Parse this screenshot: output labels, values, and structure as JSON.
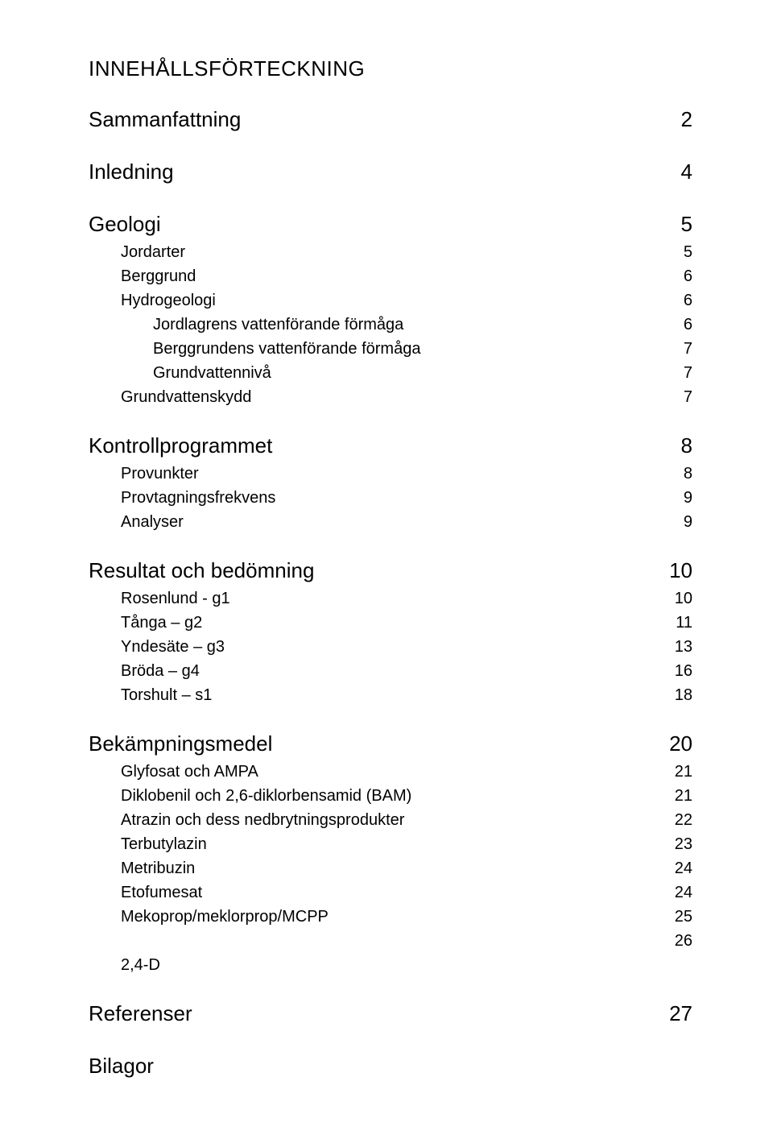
{
  "title": "INNEHÅLLSFÖRTECKNING",
  "sections": {
    "sammanfattning": {
      "label": "Sammanfattning",
      "page": "2"
    },
    "inledning": {
      "label": "Inledning",
      "page": "4"
    },
    "geologi": {
      "label": "Geologi",
      "page": "5",
      "items": [
        {
          "label": "Jordarter",
          "page": "5",
          "indent": 1
        },
        {
          "label": "Berggrund",
          "page": "6",
          "indent": 1
        },
        {
          "label": "Hydrogeologi",
          "page": "6",
          "indent": 1
        },
        {
          "label": "Jordlagrens vattenförande förmåga",
          "page": "6",
          "indent": 2
        },
        {
          "label": "Berggrundens vattenförande förmåga",
          "page": "7",
          "indent": 2
        },
        {
          "label": "Grundvattennivå",
          "page": "7",
          "indent": 2
        },
        {
          "label": "Grundvattenskydd",
          "page": "7",
          "indent": 1
        }
      ]
    },
    "kontroll": {
      "label": "Kontrollprogrammet",
      "page": "8",
      "items": [
        {
          "label": "Provunkter",
          "page": "8",
          "indent": 1
        },
        {
          "label": "Provtagningsfrekvens",
          "page": "9",
          "indent": 1
        },
        {
          "label": "Analyser",
          "page": "9",
          "indent": 1
        }
      ]
    },
    "resultat": {
      "label": "Resultat och bedömning",
      "page": "10",
      "items": [
        {
          "label": "Rosenlund - g1",
          "page": "10",
          "indent": 1
        },
        {
          "label": "Tånga – g2",
          "page": "11",
          "indent": 1
        },
        {
          "label": "Yndesäte – g3",
          "page": "13",
          "indent": 1
        },
        {
          "label": "Bröda – g4",
          "page": "16",
          "indent": 1
        },
        {
          "label": "Torshult – s1",
          "page": "18",
          "indent": 1
        }
      ]
    },
    "bekampning": {
      "label": "Bekämpningsmedel",
      "page": "20",
      "items": [
        {
          "label": "Glyfosat och AMPA",
          "page": "21",
          "indent": 1
        },
        {
          "label": "Diklobenil och 2,6-diklorbensamid (BAM)",
          "page": "21",
          "indent": 1
        },
        {
          "label": "Atrazin och dess nedbrytningsprodukter",
          "page": "22",
          "indent": 1
        },
        {
          "label": "Terbutylazin",
          "page": "23",
          "indent": 1
        },
        {
          "label": "Metribuzin",
          "page": "24",
          "indent": 1
        },
        {
          "label": "Etofumesat",
          "page": "24",
          "indent": 1
        },
        {
          "label": "Mekoprop/meklorprop/MCPP",
          "page": "25",
          "indent": 1
        },
        {
          "label": "",
          "page": "26",
          "indent": 1
        },
        {
          "label": "2,4-D",
          "page": "",
          "indent": 1
        }
      ]
    },
    "referenser": {
      "label": "Referenser",
      "page": "27"
    },
    "bilagor": {
      "label": "Bilagor",
      "page": ""
    }
  }
}
